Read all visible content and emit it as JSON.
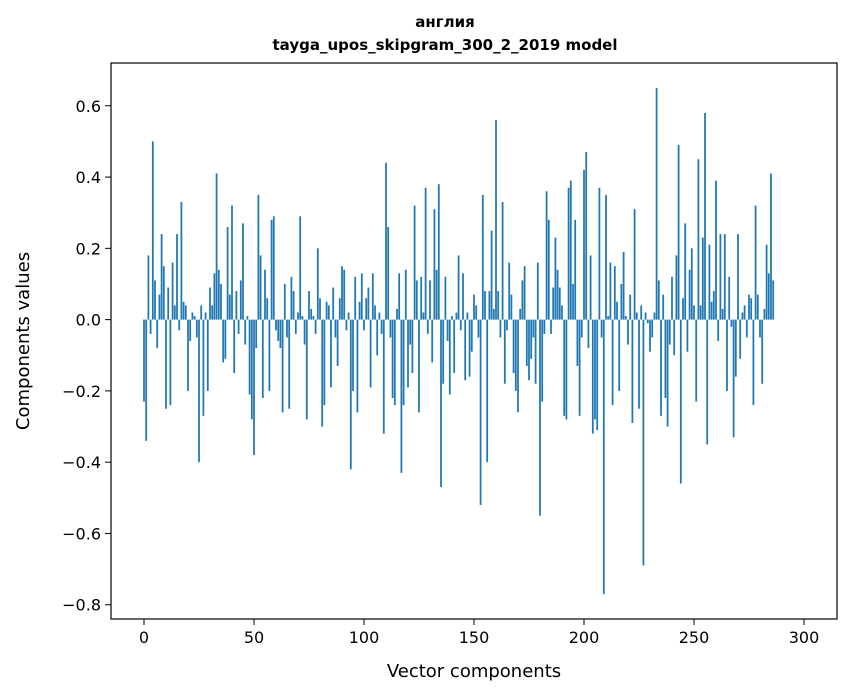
{
  "chart_data": {
    "type": "bar",
    "title": "англия",
    "subtitle": "tayga_upos_skipgram_300_2_2019 model",
    "xlabel": "Vector components",
    "ylabel": "Components values",
    "xlim": [
      -15,
      315
    ],
    "ylim": [
      -0.84,
      0.72
    ],
    "xticks": [
      0,
      50,
      100,
      150,
      200,
      250,
      300
    ],
    "yticks": [
      -0.8,
      -0.6,
      -0.4,
      -0.2,
      0.0,
      0.2,
      0.4,
      0.6
    ],
    "xtick_labels": [
      "0",
      "50",
      "100",
      "150",
      "200",
      "250",
      "300"
    ],
    "ytick_labels": [
      "−0.8",
      "−0.6",
      "−0.4",
      "−0.2",
      "0.0",
      "0.2",
      "0.4",
      "0.6"
    ],
    "bar_color": "#1f77b4",
    "grid": false,
    "values": [
      -0.23,
      -0.34,
      0.18,
      -0.04,
      0.5,
      0.11,
      -0.08,
      0.07,
      0.24,
      0.15,
      -0.25,
      0.09,
      -0.24,
      0.16,
      0.04,
      0.24,
      -0.03,
      0.33,
      0.05,
      0.04,
      -0.2,
      -0.06,
      0.02,
      0.01,
      -0.05,
      -0.4,
      0.04,
      -0.27,
      0.02,
      -0.2,
      0.09,
      0.04,
      0.13,
      0.41,
      0.14,
      0.1,
      -0.12,
      -0.11,
      0.26,
      0.07,
      0.32,
      -0.15,
      0.08,
      -0.04,
      0.11,
      0.27,
      -0.07,
      0.01,
      -0.21,
      -0.28,
      -0.38,
      -0.08,
      0.35,
      0.18,
      -0.22,
      0.14,
      0.06,
      -0.2,
      0.28,
      0.29,
      -0.03,
      -0.06,
      -0.08,
      -0.26,
      0.1,
      -0.05,
      -0.25,
      0.12,
      0.08,
      -0.04,
      0.02,
      0.29,
      0.01,
      -0.07,
      -0.28,
      0.08,
      0.03,
      0.01,
      -0.04,
      0.2,
      0.06,
      -0.3,
      -0.24,
      0.05,
      0.04,
      -0.19,
      0.09,
      -0.05,
      -0.13,
      0.06,
      0.15,
      0.14,
      -0.03,
      0.02,
      -0.42,
      -0.2,
      0.12,
      -0.26,
      0.05,
      0.13,
      -0.03,
      0.06,
      0.09,
      -0.19,
      0.13,
      0.04,
      -0.1,
      0.02,
      -0.04,
      -0.32,
      0.44,
      0.26,
      -0.05,
      -0.22,
      -0.24,
      0.03,
      0.13,
      -0.43,
      -0.24,
      0.14,
      -0.19,
      -0.07,
      -0.15,
      0.32,
      0.11,
      -0.26,
      0.12,
      0.02,
      0.37,
      -0.04,
      0.11,
      -0.12,
      0.31,
      0.14,
      0.38,
      -0.47,
      -0.18,
      0.12,
      -0.06,
      -0.21,
      0.01,
      -0.15,
      0.02,
      0.18,
      -0.03,
      0.13,
      -0.17,
      0.02,
      -0.16,
      -0.09,
      0.07,
      0.04,
      -0.05,
      -0.52,
      0.35,
      0.08,
      -0.4,
      0.08,
      0.25,
      0.03,
      0.56,
      0.08,
      -0.05,
      0.33,
      -0.18,
      -0.03,
      0.16,
      0.07,
      -0.15,
      -0.2,
      -0.26,
      0.03,
      0.11,
      0.15,
      -0.13,
      -0.17,
      -0.11,
      -0.05,
      -0.18,
      0.16,
      -0.55,
      -0.23,
      -0.04,
      0.36,
      0.28,
      -0.04,
      0.09,
      0.23,
      0.14,
      0.09,
      0.04,
      -0.27,
      -0.28,
      0.37,
      0.39,
      0.1,
      0.28,
      -0.13,
      -0.27,
      -0.05,
      0.42,
      0.47,
      -0.08,
      0.18,
      -0.32,
      -0.28,
      -0.31,
      0.37,
      -0.05,
      -0.77,
      0.35,
      0.01,
      0.16,
      -0.24,
      0.15,
      0.05,
      -0.2,
      0.1,
      0.19,
      0.01,
      -0.07,
      0.07,
      -0.29,
      0.31,
      0.02,
      -0.25,
      0.04,
      -0.69,
      0.02,
      -0.01,
      -0.09,
      -0.05,
      0.02,
      0.65,
      0.11,
      -0.27,
      0.07,
      -0.22,
      -0.3,
      -0.07,
      0.12,
      -0.1,
      0.18,
      0.49,
      -0.46,
      0.06,
      0.27,
      -0.09,
      0.14,
      0.2,
      0.04,
      -0.23,
      0.45,
      0.04,
      0.23,
      0.58,
      -0.35,
      0.21,
      0.05,
      0.08,
      0.39,
      -0.06,
      0.24,
      0.03,
      0.24,
      -0.2,
      0.12,
      -0.02,
      -0.33,
      -0.16,
      0.24,
      -0.11,
      0.02,
      0.04,
      -0.05,
      0.07,
      0.06,
      -0.24,
      0.32,
      0.07,
      -0.05,
      -0.18,
      0.03,
      0.21,
      0.13,
      0.41,
      0.11
    ]
  }
}
